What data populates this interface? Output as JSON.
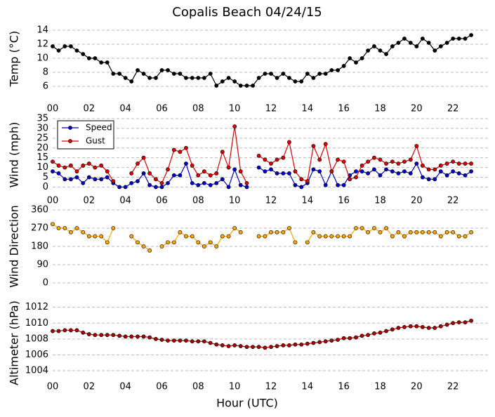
{
  "chart_data": [
    {
      "type": "line",
      "title": "Copalis Beach 04/24/15",
      "ylabel": "Temp (°C)",
      "grid": true,
      "xlim": [
        0,
        24
      ],
      "xticks": [
        {
          "value": 0,
          "label": "00"
        },
        {
          "value": 2,
          "label": "02"
        },
        {
          "value": 4,
          "label": "04"
        },
        {
          "value": 6,
          "label": "06"
        },
        {
          "value": 8,
          "label": "08"
        },
        {
          "value": 10,
          "label": "10"
        },
        {
          "value": 12,
          "label": "12"
        },
        {
          "value": 14,
          "label": "14"
        },
        {
          "value": 16,
          "label": "16"
        },
        {
          "value": 18,
          "label": "18"
        },
        {
          "value": 20,
          "label": "20"
        },
        {
          "value": 22,
          "label": "22"
        }
      ],
      "ylim": [
        5.3,
        14.6
      ],
      "yticks": [
        6,
        8,
        10,
        12,
        14
      ],
      "x": [
        0,
        0.33,
        0.67,
        1,
        1.33,
        1.67,
        2,
        2.33,
        2.67,
        3,
        3.33,
        3.67,
        4,
        4.33,
        4.67,
        5,
        5.33,
        5.67,
        6,
        6.33,
        6.67,
        7,
        7.33,
        7.67,
        8,
        8.33,
        8.67,
        9,
        9.33,
        9.67,
        10,
        10.33,
        10.67,
        11,
        11.33,
        11.67,
        12,
        12.33,
        12.67,
        13,
        13.33,
        13.67,
        14,
        14.33,
        14.67,
        15,
        15.33,
        15.67,
        16,
        16.33,
        16.67,
        17,
        17.33,
        17.67,
        18,
        18.33,
        18.67,
        19,
        19.33,
        19.67,
        20,
        20.33,
        20.67,
        21,
        21.33,
        21.67,
        22,
        22.33,
        22.67,
        23
      ],
      "series": [
        {
          "color": "#000000",
          "values": [
            11.7,
            11.1,
            11.7,
            11.7,
            11.1,
            10.6,
            10.0,
            10.0,
            9.4,
            9.4,
            7.8,
            7.8,
            7.2,
            6.7,
            8.3,
            7.8,
            7.2,
            7.2,
            8.3,
            8.3,
            7.8,
            7.8,
            7.2,
            7.2,
            7.2,
            7.2,
            7.8,
            6.1,
            6.7,
            7.2,
            6.7,
            6.1,
            6.1,
            6.1,
            7.2,
            7.8,
            7.8,
            7.2,
            7.8,
            7.2,
            6.7,
            6.7,
            7.8,
            7.2,
            7.8,
            7.8,
            8.3,
            8.3,
            8.9,
            10.0,
            9.4,
            10.0,
            11.1,
            11.7,
            11.1,
            10.6,
            11.7,
            12.2,
            12.8,
            12.2,
            11.7,
            12.8,
            12.2,
            11.1,
            11.7,
            12.2,
            12.8,
            12.8,
            12.8,
            13.3
          ]
        }
      ]
    },
    {
      "type": "line",
      "ylabel": "Wind (mph)",
      "grid": true,
      "legend": "upper left",
      "xlim": [
        0,
        24
      ],
      "xticks": [
        {
          "value": 0,
          "label": "00"
        },
        {
          "value": 2,
          "label": "02"
        },
        {
          "value": 4,
          "label": "04"
        },
        {
          "value": 6,
          "label": "06"
        },
        {
          "value": 8,
          "label": "08"
        },
        {
          "value": 10,
          "label": "10"
        },
        {
          "value": 12,
          "label": "12"
        },
        {
          "value": 14,
          "label": "14"
        },
        {
          "value": 16,
          "label": "16"
        },
        {
          "value": 18,
          "label": "18"
        },
        {
          "value": 20,
          "label": "20"
        },
        {
          "value": 22,
          "label": "22"
        }
      ],
      "ylim": [
        -2,
        35
      ],
      "yticks": [
        0,
        5,
        10,
        15,
        20,
        25,
        30,
        35
      ],
      "x": [
        0,
        0.33,
        0.67,
        1,
        1.33,
        1.67,
        2,
        2.33,
        2.67,
        3,
        3.33,
        3.67,
        4,
        4.33,
        4.67,
        5,
        5.33,
        5.67,
        6,
        6.33,
        6.67,
        7,
        7.33,
        7.67,
        8,
        8.33,
        8.67,
        9,
        9.33,
        9.67,
        10,
        10.33,
        10.67,
        11,
        11.33,
        11.67,
        12,
        12.33,
        12.67,
        13,
        13.33,
        13.67,
        14,
        14.33,
        14.67,
        15,
        15.33,
        15.67,
        16,
        16.33,
        16.67,
        17,
        17.33,
        17.67,
        18,
        18.33,
        18.67,
        19,
        19.33,
        19.67,
        20,
        20.33,
        20.67,
        21,
        21.33,
        21.67,
        22,
        22.33,
        22.67,
        23
      ],
      "series": [
        {
          "name": "Speed",
          "color": "#0000cc",
          "values": [
            8,
            7,
            4,
            4,
            5,
            2,
            5,
            4,
            4,
            5,
            2,
            0,
            0,
            2,
            3,
            7,
            1,
            0,
            0,
            2,
            6,
            6,
            12,
            2,
            1,
            2,
            1,
            2,
            4,
            0,
            9,
            1,
            0,
            null,
            10,
            8,
            9,
            7,
            7,
            7,
            1,
            0,
            2,
            9,
            8,
            1,
            8,
            1,
            1,
            6,
            8,
            8,
            7,
            9,
            6,
            9,
            8,
            7,
            8,
            7,
            12,
            5,
            4,
            4,
            8,
            6,
            8,
            7,
            6,
            8
          ]
        },
        {
          "name": "Gust",
          "color": "#dd0000",
          "values": [
            13,
            11,
            10,
            11,
            8,
            11,
            12,
            10,
            11,
            8,
            3,
            null,
            null,
            7,
            12,
            15,
            7,
            4,
            2,
            9,
            19,
            18,
            20,
            11,
            6,
            8,
            6,
            7,
            18,
            10,
            31,
            8,
            2,
            null,
            16,
            14,
            12,
            14,
            15,
            23,
            8,
            4,
            3,
            21,
            14,
            22,
            8,
            14,
            13,
            4,
            5,
            11,
            13,
            15,
            14,
            12,
            13,
            12,
            13,
            14,
            21,
            11,
            9,
            9,
            11,
            12,
            13,
            12,
            12,
            12
          ]
        }
      ]
    },
    {
      "type": "line",
      "ylabel": "Wind Direction",
      "grid": true,
      "xlim": [
        0,
        24
      ],
      "ylim": [
        0,
        360
      ],
      "yticks": [
        0,
        90,
        180,
        270,
        360
      ],
      "x": [
        0,
        0.33,
        0.67,
        1,
        1.33,
        1.67,
        2,
        2.33,
        2.67,
        3,
        3.33,
        3.67,
        4,
        4.33,
        4.67,
        5,
        5.33,
        5.67,
        6,
        6.33,
        6.67,
        7,
        7.33,
        7.67,
        8,
        8.33,
        8.67,
        9,
        9.33,
        9.67,
        10,
        10.33,
        10.67,
        11,
        11.33,
        11.67,
        12,
        12.33,
        12.67,
        13,
        13.33,
        13.67,
        14,
        14.33,
        14.67,
        15,
        15.33,
        15.67,
        16,
        16.33,
        16.67,
        17,
        17.33,
        17.67,
        18,
        18.33,
        18.67,
        19,
        19.33,
        19.67,
        20,
        20.33,
        20.67,
        21,
        21.33,
        21.67,
        22,
        22.33,
        22.67,
        23
      ],
      "series": [
        {
          "color": "#ffa500",
          "values": [
            290,
            270,
            270,
            250,
            270,
            250,
            230,
            230,
            230,
            200,
            270,
            null,
            null,
            230,
            200,
            180,
            160,
            null,
            180,
            200,
            200,
            250,
            230,
            230,
            200,
            180,
            200,
            180,
            230,
            230,
            270,
            250,
            null,
            null,
            230,
            230,
            250,
            250,
            250,
            270,
            200,
            null,
            200,
            250,
            230,
            230,
            230,
            230,
            230,
            230,
            270,
            270,
            250,
            270,
            250,
            270,
            230,
            250,
            230,
            250,
            250,
            250,
            250,
            250,
            230,
            250,
            250,
            230,
            230,
            250
          ]
        }
      ]
    },
    {
      "type": "line",
      "ylabel": "Altimeter (hPa)",
      "xlabel": "Hour (UTC)",
      "grid": true,
      "xlim": [
        0,
        24
      ],
      "xticks": [
        {
          "value": 0,
          "label": "00"
        },
        {
          "value": 2,
          "label": "02"
        },
        {
          "value": 4,
          "label": "04"
        },
        {
          "value": 6,
          "label": "06"
        },
        {
          "value": 8,
          "label": "08"
        },
        {
          "value": 10,
          "label": "10"
        },
        {
          "value": 12,
          "label": "12"
        },
        {
          "value": 14,
          "label": "14"
        },
        {
          "value": 16,
          "label": "16"
        },
        {
          "value": 18,
          "label": "18"
        },
        {
          "value": 20,
          "label": "20"
        },
        {
          "value": 22,
          "label": "22"
        }
      ],
      "ylim": [
        1002.5,
        1012.5
      ],
      "yticks": [
        1004,
        1006,
        1008,
        1010,
        1012
      ],
      "x": [
        0,
        0.33,
        0.67,
        1,
        1.33,
        1.67,
        2,
        2.33,
        2.67,
        3,
        3.33,
        3.67,
        4,
        4.33,
        4.67,
        5,
        5.33,
        5.67,
        6,
        6.33,
        6.67,
        7,
        7.33,
        7.67,
        8,
        8.33,
        8.67,
        9,
        9.33,
        9.67,
        10,
        10.33,
        10.67,
        11,
        11.33,
        11.67,
        12,
        12.33,
        12.67,
        13,
        13.33,
        13.67,
        14,
        14.33,
        14.67,
        15,
        15.33,
        15.67,
        16,
        16.33,
        16.67,
        17,
        17.33,
        17.67,
        18,
        18.33,
        18.67,
        19,
        19.33,
        19.67,
        20,
        20.33,
        20.67,
        21,
        21.33,
        21.67,
        22,
        22.33,
        22.67,
        23
      ],
      "series": [
        {
          "color": "#aa0000",
          "values": [
            1009.0,
            1009.0,
            1009.1,
            1009.1,
            1009.1,
            1008.8,
            1008.6,
            1008.5,
            1008.5,
            1008.5,
            1008.5,
            1008.4,
            1008.3,
            1008.3,
            1008.3,
            1008.3,
            1008.2,
            1008.0,
            1007.9,
            1007.8,
            1007.8,
            1007.8,
            1007.8,
            1007.7,
            1007.7,
            1007.7,
            1007.5,
            1007.3,
            1007.2,
            1007.1,
            1007.2,
            1007.1,
            1007.0,
            1007.0,
            1007.0,
            1006.9,
            1007.0,
            1007.1,
            1007.2,
            1007.2,
            1007.3,
            1007.3,
            1007.4,
            1007.5,
            1007.6,
            1007.7,
            1007.8,
            1007.9,
            1008.1,
            1008.1,
            1008.2,
            1008.4,
            1008.5,
            1008.7,
            1008.8,
            1009.0,
            1009.2,
            1009.4,
            1009.5,
            1009.6,
            1009.6,
            1009.5,
            1009.4,
            1009.4,
            1009.6,
            1009.8,
            1010.0,
            1010.1,
            1010.1,
            1010.3
          ]
        }
      ]
    }
  ]
}
